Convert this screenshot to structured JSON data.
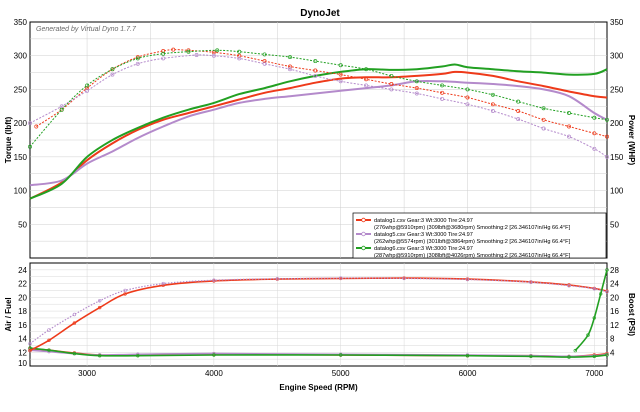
{
  "title": "DynoJet",
  "generated_by": "Generated by Virtual Dyno 1.7.7",
  "chart_data": [
    {
      "type": "line",
      "panel": "top",
      "xlabel": "",
      "ylabel_left": "Torque (lbft)",
      "ylabel_right": "Power (WHP)",
      "xlim": [
        2550,
        7100
      ],
      "ylim": [
        0,
        350
      ],
      "yticks": [
        50,
        100,
        150,
        200,
        250,
        300,
        350
      ],
      "xticks": [
        3000,
        4000,
        5000,
        6000,
        7000
      ],
      "grid": true,
      "legend_position": "lower-right",
      "legend": [
        {
          "text": "datalog1.csv Gear:3 Wt:3000 Tire:24.97",
          "detail": "(276whp@5910rpm)   (309lbft@3680rpm)   Smoothing:2   [26.346107in/Hg  66.4°F]",
          "color": "#ee3a1a"
        },
        {
          "text": "datalog5.csv Gear:3 Wt:3000 Tire:24.97",
          "detail": "(262whp@5574rpm)   (301lbft@3864rpm)   Smoothing:2   [26.346107in/Hg  66.4°F]",
          "color": "#b48acb"
        },
        {
          "text": "datalog6.csv Gear:3 Wt:3000 Tire:24.97",
          "detail": "(287whp@5910rpm)   (308lbft@4026rpm)   Smoothing:2   [26.346107in/Hg  66.4°F]",
          "color": "#22a022"
        }
      ],
      "series": [
        {
          "key": "d1",
          "color": "#ee3a1a",
          "style": "power",
          "x": [
            2550,
            2800,
            3000,
            3200,
            3400,
            3600,
            3800,
            4000,
            4200,
            4400,
            4600,
            4800,
            5000,
            5200,
            5400,
            5600,
            5800,
            5900,
            6000,
            6200,
            6400,
            6600,
            6800,
            7000,
            7100
          ],
          "y": [
            88,
            112,
            145,
            170,
            190,
            205,
            215,
            225,
            235,
            245,
            252,
            260,
            266,
            268,
            268,
            270,
            273,
            276,
            275,
            270,
            262,
            255,
            247,
            240,
            238
          ]
        },
        {
          "key": "d5",
          "color": "#b48acb",
          "style": "power",
          "x": [
            2550,
            2800,
            3000,
            3200,
            3400,
            3600,
            3800,
            4000,
            4200,
            4400,
            4600,
            4800,
            5000,
            5200,
            5400,
            5600,
            5800,
            6000,
            6200,
            6400,
            6600,
            6800,
            7000,
            7100
          ],
          "y": [
            108,
            115,
            140,
            158,
            178,
            195,
            210,
            220,
            230,
            236,
            240,
            244,
            248,
            252,
            256,
            262,
            262,
            260,
            258,
            255,
            250,
            240,
            215,
            205
          ]
        },
        {
          "key": "d6",
          "color": "#22a022",
          "style": "power",
          "x": [
            2550,
            2800,
            3000,
            3200,
            3400,
            3600,
            3800,
            4000,
            4200,
            4400,
            4600,
            4800,
            5000,
            5200,
            5400,
            5600,
            5800,
            5900,
            6000,
            6200,
            6400,
            6600,
            6800,
            7000,
            7100
          ],
          "y": [
            88,
            110,
            150,
            175,
            193,
            208,
            220,
            230,
            243,
            252,
            262,
            270,
            276,
            280,
            279,
            280,
            284,
            287,
            283,
            280,
            277,
            275,
            272,
            273,
            280
          ]
        },
        {
          "key": "d1t",
          "color": "#ee3a1a",
          "style": "torque",
          "x": [
            2600,
            2800,
            3000,
            3200,
            3400,
            3600,
            3680,
            3800,
            4000,
            4200,
            4400,
            4600,
            4800,
            5000,
            5200,
            5400,
            5600,
            5800,
            6000,
            6200,
            6400,
            6600,
            6800,
            7000,
            7100
          ],
          "y": [
            195,
            220,
            252,
            280,
            298,
            307,
            309,
            308,
            305,
            300,
            292,
            284,
            278,
            272,
            265,
            258,
            252,
            245,
            238,
            228,
            218,
            205,
            195,
            185,
            180
          ]
        },
        {
          "key": "d5t",
          "color": "#b48acb",
          "style": "torque",
          "x": [
            2550,
            2800,
            3000,
            3200,
            3400,
            3600,
            3864,
            4000,
            4200,
            4400,
            4600,
            4800,
            5000,
            5200,
            5400,
            5600,
            5800,
            6000,
            6200,
            6400,
            6600,
            6800,
            7000,
            7100
          ],
          "y": [
            200,
            225,
            248,
            272,
            288,
            296,
            301,
            300,
            296,
            288,
            280,
            270,
            262,
            256,
            250,
            244,
            236,
            228,
            218,
            206,
            192,
            180,
            162,
            150
          ]
        },
        {
          "key": "d6t",
          "color": "#22a022",
          "style": "torque",
          "x": [
            2550,
            2800,
            3000,
            3200,
            3400,
            3600,
            3800,
            4026,
            4200,
            4400,
            4600,
            4800,
            5000,
            5200,
            5400,
            5600,
            5800,
            6000,
            6200,
            6400,
            6600,
            6800,
            7000,
            7100
          ],
          "y": [
            165,
            220,
            256,
            280,
            296,
            303,
            306,
            308,
            306,
            302,
            298,
            292,
            286,
            280,
            270,
            262,
            256,
            250,
            242,
            232,
            222,
            215,
            208,
            205
          ]
        }
      ]
    },
    {
      "type": "line",
      "panel": "bottom",
      "xlabel": "Engine Speed (RPM)",
      "ylabel_left": "Air / Fuel",
      "ylabel_right": "Boost (PSI)",
      "xlim": [
        2550,
        7100
      ],
      "ylim": [
        10,
        25
      ],
      "yticks": [
        10,
        12,
        14,
        16,
        18,
        20,
        22,
        24
      ],
      "right_ylim": [
        0,
        30
      ],
      "right_yticks": [
        4,
        8,
        12,
        16,
        20,
        24,
        28
      ],
      "xticks": [
        3000,
        4000,
        5000,
        6000,
        7000
      ],
      "grid": true,
      "series": [
        {
          "key": "afr1",
          "color": "#ee3a1a",
          "style": "solid",
          "axis": "left",
          "x": [
            2550,
            2700,
            2900,
            3100,
            3400,
            4000,
            5000,
            6000,
            6500,
            6800,
            7000,
            7100
          ],
          "y": [
            12.5,
            12.3,
            11.9,
            11.6,
            11.6,
            11.7,
            11.6,
            11.5,
            11.5,
            11.4,
            11.6,
            11.8
          ]
        },
        {
          "key": "afr5",
          "color": "#b48acb",
          "style": "solid",
          "axis": "left",
          "x": [
            2550,
            2700,
            2900,
            3100,
            3400,
            4000,
            5000,
            6000,
            6500,
            6800,
            7000,
            7100
          ],
          "y": [
            12.3,
            12.1,
            11.8,
            11.6,
            11.7,
            11.8,
            11.7,
            11.6,
            11.5,
            11.4,
            11.5,
            11.7
          ]
        },
        {
          "key": "afr6",
          "color": "#22a022",
          "style": "solid",
          "axis": "left",
          "x": [
            2550,
            2700,
            2900,
            3100,
            3400,
            4000,
            5000,
            6000,
            6500,
            6800,
            7000,
            7100
          ],
          "y": [
            12.6,
            12.3,
            11.8,
            11.5,
            11.5,
            11.6,
            11.6,
            11.5,
            11.4,
            11.3,
            11.4,
            11.6
          ]
        },
        {
          "key": "boost1",
          "color": "#ee3a1a",
          "style": "solid",
          "axis": "right",
          "x": [
            2550,
            2700,
            2900,
            3100,
            3300,
            3600,
            4000,
            4500,
            5000,
            5500,
            6000,
            6500,
            6800,
            7000,
            7100
          ],
          "y": [
            4.5,
            7.5,
            12.5,
            17,
            21,
            23.5,
            24.8,
            25.3,
            25.5,
            25.6,
            25.3,
            24.5,
            23.6,
            22.6,
            21.8
          ]
        },
        {
          "key": "boost5",
          "color": "#b48acb",
          "style": "dotted",
          "axis": "right",
          "x": [
            2550,
            2700,
            2900,
            3100,
            3300,
            3600,
            4000,
            4500,
            5000,
            5500,
            6000,
            6500,
            6800,
            7000,
            7100
          ],
          "y": [
            6.5,
            10.5,
            15,
            19,
            22,
            24,
            25,
            25.4,
            25.6,
            25.5,
            25.2,
            24.4,
            23.4,
            22.5,
            21.6
          ]
        },
        {
          "key": "boost6",
          "color": "#22a022",
          "style": "solid",
          "axis": "right",
          "x": [
            6850,
            6950,
            7000,
            7050,
            7100
          ],
          "y": [
            4.5,
            9,
            14,
            21,
            28
          ]
        }
      ]
    }
  ]
}
